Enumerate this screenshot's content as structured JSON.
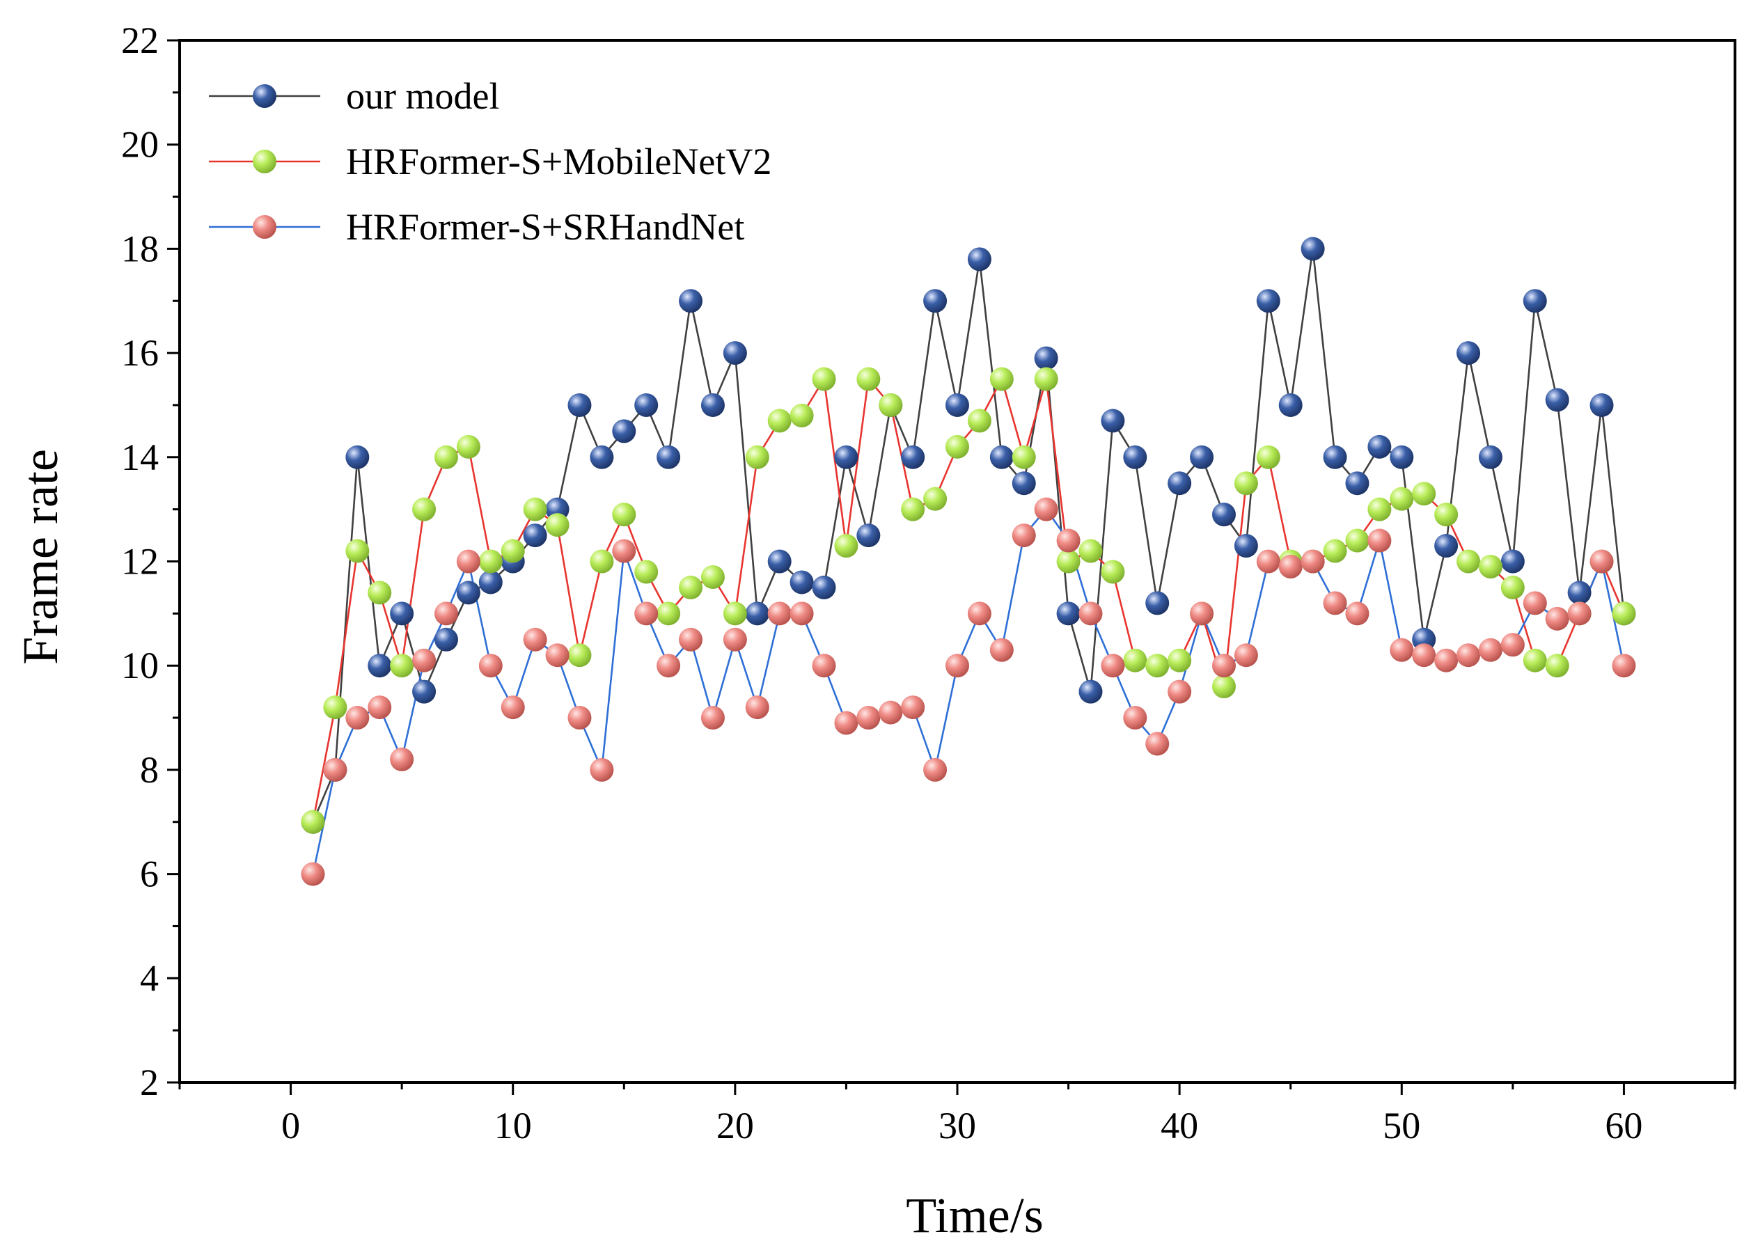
{
  "chart_data": {
    "type": "line",
    "title": "",
    "xlabel": "Time/s",
    "ylabel": "Frame rate",
    "xlim": [
      -5,
      65
    ],
    "ylim": [
      2,
      22
    ],
    "xticks": [
      0,
      10,
      20,
      30,
      40,
      50,
      60
    ],
    "yticks": [
      2,
      4,
      6,
      8,
      10,
      12,
      14,
      16,
      18,
      20,
      22
    ],
    "grid": false,
    "legend_position": "top-left",
    "x": [
      1,
      2,
      3,
      4,
      5,
      6,
      7,
      8,
      9,
      10,
      11,
      12,
      13,
      14,
      15,
      16,
      17,
      18,
      19,
      20,
      21,
      22,
      23,
      24,
      25,
      26,
      27,
      28,
      29,
      30,
      31,
      32,
      33,
      34,
      35,
      36,
      37,
      38,
      39,
      40,
      41,
      42,
      43,
      44,
      45,
      46,
      47,
      48,
      49,
      50,
      51,
      52,
      53,
      54,
      55,
      56,
      57,
      58,
      59,
      60
    ],
    "series": [
      {
        "name": "our model",
        "line_color": "#404040",
        "marker_color": "#3a5fa8",
        "values": [
          7,
          8,
          14,
          10,
          11,
          9.5,
          10.5,
          11.4,
          11.6,
          12,
          12.5,
          13,
          15,
          14,
          14.5,
          15,
          14,
          17,
          15,
          16,
          11,
          12,
          11.6,
          11.5,
          14,
          12.5,
          15,
          14,
          17,
          15,
          17.8,
          14,
          13.5,
          15.9,
          11,
          9.5,
          14.7,
          14,
          11.2,
          13.5,
          14,
          12.9,
          12.3,
          17,
          15,
          18,
          14,
          13.5,
          14.2,
          14,
          10.5,
          12.3,
          16,
          14,
          12,
          17,
          15.1,
          11.4,
          15,
          11
        ]
      },
      {
        "name": "HRFormer-S+MobileNetV2",
        "line_color": "#e8342e",
        "marker_color": "#b8ec58",
        "values": [
          7,
          9.2,
          12.2,
          11.4,
          10,
          13,
          14,
          14.2,
          12,
          12.2,
          13,
          12.7,
          10.2,
          12,
          12.9,
          11.8,
          11,
          11.5,
          11.7,
          11,
          14,
          14.7,
          14.8,
          15.5,
          12.3,
          15.5,
          15,
          13,
          13.2,
          14.2,
          14.7,
          15.5,
          14,
          15.5,
          12,
          12.2,
          11.8,
          10.1,
          10,
          10.1,
          11,
          9.6,
          13.5,
          14,
          12,
          12,
          12.2,
          12.4,
          13,
          13.2,
          13.3,
          12.9,
          12,
          11.9,
          11.5,
          10.1,
          10,
          11,
          12,
          11
        ]
      },
      {
        "name": "HRFormer-S+SRHandNet",
        "line_color": "#2e6fd6",
        "marker_color": "#ef8a84",
        "values": [
          6,
          8,
          9,
          9.2,
          8.2,
          10.1,
          11,
          12,
          10,
          9.2,
          10.5,
          10.2,
          9,
          8,
          12.2,
          11,
          10,
          10.5,
          9,
          10.5,
          9.2,
          11,
          11,
          10,
          8.9,
          9,
          9.1,
          9.2,
          8,
          10,
          11,
          10.3,
          12.5,
          13,
          12.4,
          11,
          10,
          9,
          8.5,
          9.5,
          11,
          10,
          10.2,
          12,
          11.9,
          12,
          11.2,
          11,
          12.4,
          10.3,
          10.2,
          10.1,
          10.2,
          10.3,
          10.4,
          11.2,
          10.9,
          11,
          12,
          10
        ]
      }
    ]
  }
}
